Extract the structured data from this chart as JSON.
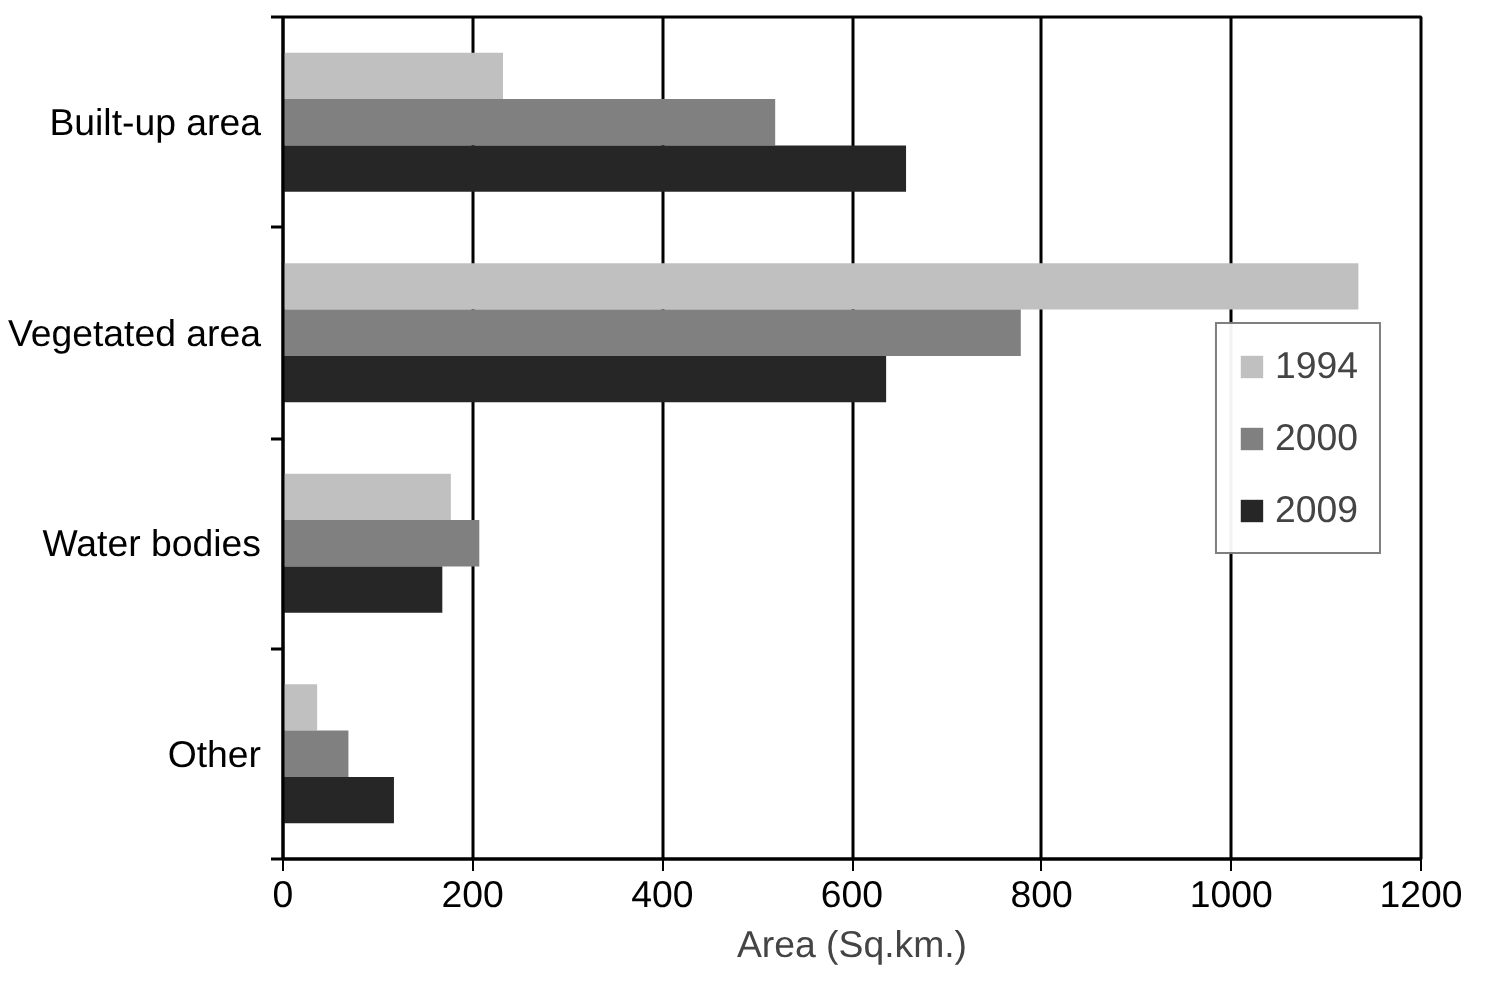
{
  "chart_data": {
    "type": "bar",
    "orientation": "horizontal",
    "xlabel": "Area (Sq.km.)",
    "categories": [
      "Built-up area",
      "Vegetated area",
      "Water bodies",
      "Other"
    ],
    "series": [
      {
        "name": "1994",
        "color": "#c0c0c0",
        "values": [
          232,
          1134,
          177,
          36
        ]
      },
      {
        "name": "2000",
        "color": "#808080",
        "values": [
          519,
          778,
          207,
          69
        ]
      },
      {
        "name": "2009",
        "color": "#262626",
        "values": [
          657,
          636,
          168,
          117
        ]
      }
    ],
    "xlim": [
      0,
      1200
    ],
    "xticks": [
      0,
      200,
      400,
      600,
      800,
      1000,
      1200
    ],
    "grid": "x",
    "legend": "right"
  }
}
